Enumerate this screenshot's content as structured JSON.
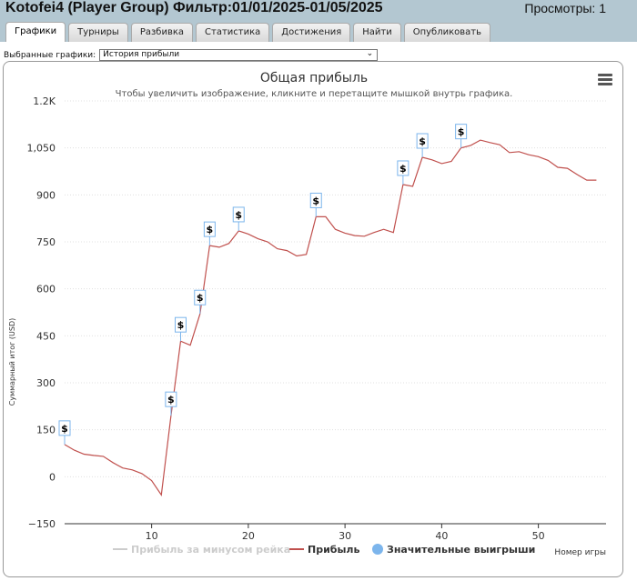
{
  "header": {
    "title": "Kotofei4 (Player Group) Фильтр:01/01/2025-01/05/2025",
    "views": "Просмотры: 1"
  },
  "tabs": [
    {
      "label": "Графики",
      "active": true
    },
    {
      "label": "Турниры",
      "active": false
    },
    {
      "label": "Разбивка",
      "active": false
    },
    {
      "label": "Статистика",
      "active": false
    },
    {
      "label": "Достижения",
      "active": false
    },
    {
      "label": "Найти",
      "active": false
    },
    {
      "label": "Опубликовать",
      "active": false
    }
  ],
  "selector": {
    "label": "Выбранные графики:",
    "value": "История прибыли"
  },
  "chart_data": {
    "type": "line",
    "title": "Общая прибыль",
    "subtitle": "Чтобы увеличить изображение, кликните и перетащите мышкой внутрь графика.",
    "xlabel": "Номер игры",
    "ylabel": "Суммарный итог (USD)",
    "xlim": [
      1,
      57
    ],
    "ylim": [
      -150,
      1200
    ],
    "yticks": [
      -150,
      0,
      150,
      300,
      450,
      600,
      750,
      900,
      1050,
      1200
    ],
    "ytick_labels": [
      "−150",
      "0",
      "150",
      "300",
      "450",
      "600",
      "750",
      "900",
      "1,050",
      "1.2K"
    ],
    "xticks": [
      10,
      20,
      30,
      40,
      50
    ],
    "xtick_labels": [
      "10",
      "20",
      "30",
      "40",
      "50"
    ],
    "grid": true,
    "legend_placement": "bottom",
    "series": [
      {
        "name": "Прибыль за минусом рейка",
        "color": "#cccccc",
        "hidden": true,
        "values": []
      },
      {
        "name": "Прибыль",
        "color": "#c0504d",
        "x": [
          1,
          2,
          3,
          4,
          5,
          6,
          7,
          8,
          9,
          10,
          11,
          12,
          13,
          14,
          15,
          16,
          17,
          18,
          19,
          20,
          21,
          22,
          23,
          24,
          25,
          26,
          27,
          28,
          29,
          30,
          31,
          32,
          33,
          34,
          35,
          36,
          37,
          38,
          39,
          40,
          41,
          42,
          43,
          44,
          45,
          46,
          47,
          48,
          49,
          50,
          51,
          52,
          53,
          54,
          55,
          56
        ],
        "values": [
          103,
          85,
          72,
          68,
          65,
          45,
          28,
          22,
          10,
          -12,
          -58,
          195,
          433,
          420,
          520,
          738,
          733,
          745,
          785,
          775,
          760,
          750,
          728,
          722,
          705,
          710,
          830,
          830,
          790,
          778,
          770,
          768,
          780,
          790,
          780,
          933,
          927,
          1020,
          1012,
          1000,
          1007,
          1050,
          1058,
          1075,
          1067,
          1060,
          1035,
          1038,
          1028,
          1022,
          1010,
          988,
          985,
          965,
          947,
          947
        ]
      },
      {
        "name": "Значительные выигрыши",
        "color": "#7cb5ec",
        "marker_label": "$",
        "x": [
          1,
          12,
          13,
          15,
          16,
          19,
          27,
          36,
          38,
          42
        ],
        "values": [
          103,
          195,
          433,
          520,
          738,
          785,
          830,
          933,
          1020,
          1050
        ]
      }
    ]
  }
}
